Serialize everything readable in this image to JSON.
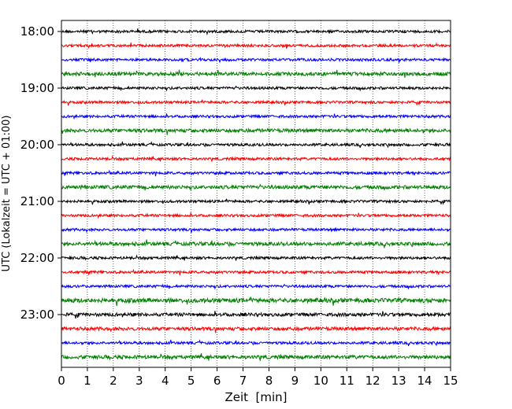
{
  "chart_data": {
    "type": "line",
    "title": "",
    "xlabel": "Zeit  [min]",
    "ylabel": "UTC (Lokalzeit = UTC + 01:00)",
    "xlim": [
      0,
      15
    ],
    "x_ticks": [
      "0",
      "1",
      "2",
      "3",
      "4",
      "5",
      "6",
      "7",
      "8",
      "9",
      "10",
      "11",
      "12",
      "13",
      "14",
      "15"
    ],
    "y_ticks": [
      {
        "label": "18:00",
        "row": 0
      },
      {
        "label": "19:00",
        "row": 4
      },
      {
        "label": "20:00",
        "row": 8
      },
      {
        "label": "21:00",
        "row": 12
      },
      {
        "label": "22:00",
        "row": 16
      },
      {
        "label": "23:00",
        "row": 20
      }
    ],
    "row_count": 24,
    "row_interval_minutes": 15,
    "first_row_time": "18:00",
    "grid": {
      "vertical": true,
      "style": "dotted"
    },
    "series_colors": [
      "#000000",
      "#ff0000",
      "#0000ff",
      "#008000"
    ]
  }
}
